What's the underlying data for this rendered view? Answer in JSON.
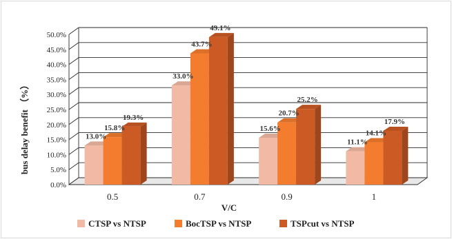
{
  "chart_data": {
    "type": "bar",
    "title": "",
    "xlabel": "V/C",
    "ylabel": "bus delay benefit （%）",
    "categories": [
      "0.5",
      "0.7",
      "0.9",
      "1"
    ],
    "ylim": [
      0,
      50
    ],
    "y_ticks": [
      "0.0%",
      "5.0%",
      "10.0%",
      "15.0%",
      "20.0%",
      "25.0%",
      "30.0%",
      "35.0%",
      "40.0%",
      "45.0%",
      "50.0%"
    ],
    "grid": true,
    "legend_position": "bottom",
    "series": [
      {
        "name": "CTSP vs NTSP",
        "values": [
          13.0,
          33.0,
          15.6,
          11.1
        ],
        "labels": [
          "13.0%",
          "33.0%",
          "15.6%",
          "11.1%"
        ],
        "color": "#f2b9a4"
      },
      {
        "name": "BocTSP vs NTSP",
        "values": [
          15.8,
          43.7,
          20.7,
          14.1
        ],
        "labels": [
          "15.8%",
          "43.7%",
          "20.7%",
          "14.1%"
        ],
        "color": "#f47c2e"
      },
      {
        "name": "TSPcut vs NTSP",
        "values": [
          19.3,
          49.1,
          25.2,
          17.9
        ],
        "labels": [
          "19.3%",
          "49.1%",
          "25.2%",
          "17.9%"
        ],
        "color": "#cc5a24"
      }
    ]
  }
}
